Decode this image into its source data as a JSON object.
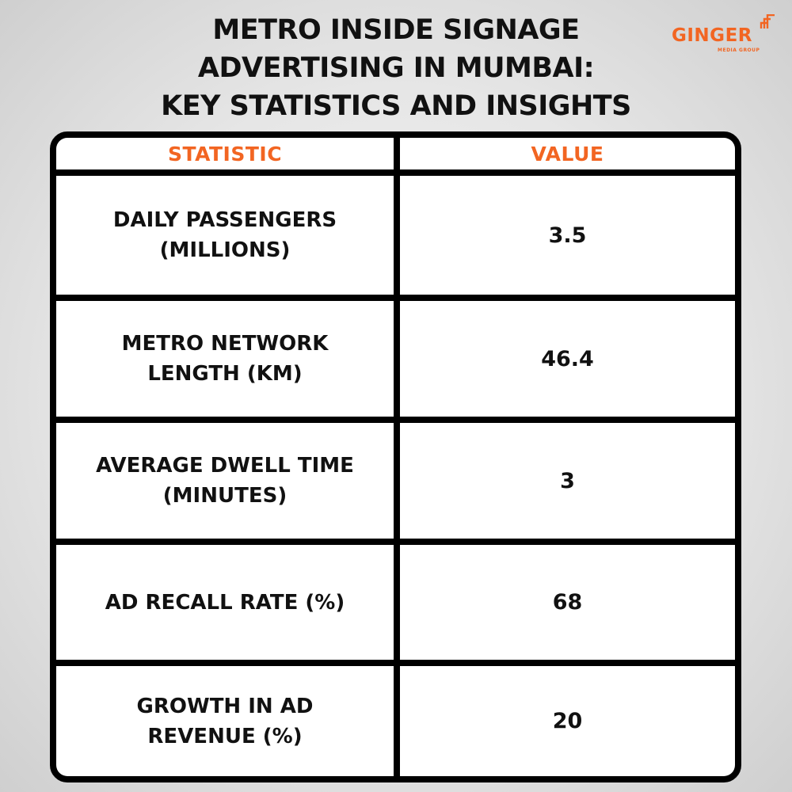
{
  "title": {
    "line1": "METRO INSIDE SIGNAGE",
    "line2": "ADVERTISING IN MUMBAI:",
    "line3": "KEY STATISTICS AND INSIGHTS"
  },
  "logo": {
    "word": "GINGER",
    "sub": "MEDIA GROUP",
    "icon": "ginger-mark-icon",
    "color": "#f26522"
  },
  "colors": {
    "accent": "#f26522",
    "text": "#111111",
    "border": "#000000"
  },
  "chart_data": {
    "type": "table",
    "columns": [
      "STATISTIC",
      "VALUE"
    ],
    "rows": [
      {
        "statistic": "DAILY PASSENGERS (MILLIONS)",
        "value": "3.5"
      },
      {
        "statistic": "METRO NETWORK LENGTH (KM)",
        "value": "46.4"
      },
      {
        "statistic": "AVERAGE DWELL TIME (MINUTES)",
        "value": "3"
      },
      {
        "statistic": "AD RECALL RATE (%)",
        "value": "68"
      },
      {
        "statistic": "GROWTH IN AD REVENUE (%)",
        "value": "20"
      }
    ]
  }
}
